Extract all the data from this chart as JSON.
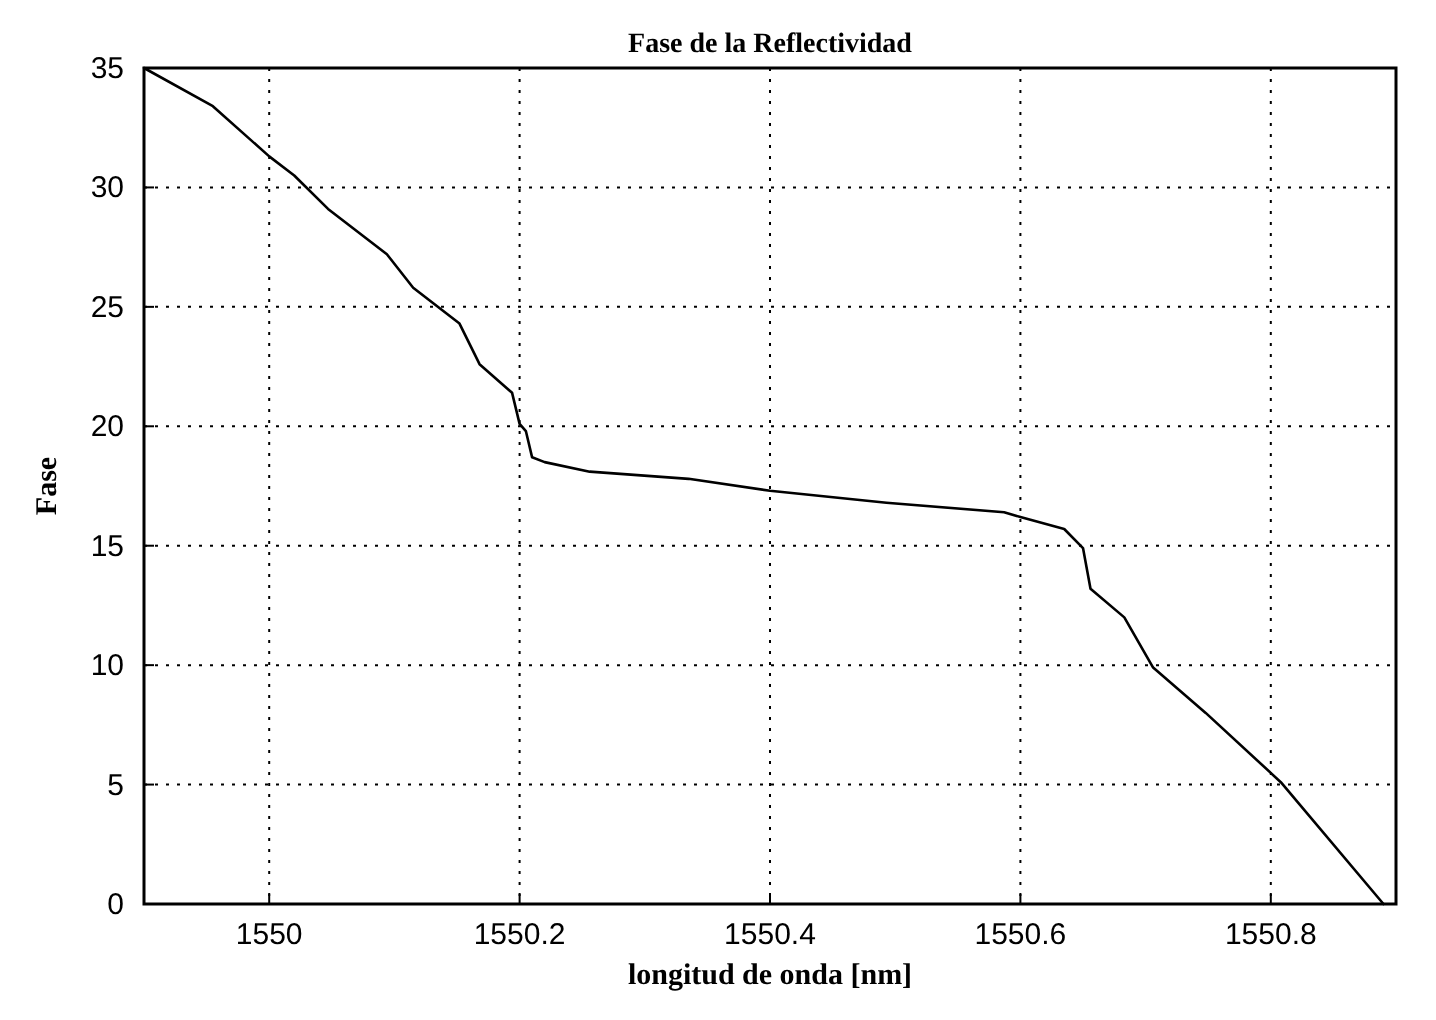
{
  "chart_data": {
    "type": "line",
    "title": "Fase de la Reflectividad",
    "xlabel": "longitud de onda [nm]",
    "ylabel": "Fase",
    "x": [
      1549.9,
      1549.955,
      1550.0,
      1550.02,
      1550.047,
      1550.094,
      1550.115,
      1550.152,
      1550.168,
      1550.194,
      1550.2,
      1550.205,
      1550.21,
      1550.22,
      1550.256,
      1550.335,
      1550.4,
      1550.493,
      1550.587,
      1550.6,
      1550.635,
      1550.65,
      1550.656,
      1550.683,
      1550.706,
      1550.748,
      1550.808,
      1550.89
    ],
    "values": [
      35,
      33.4,
      31.3,
      30.5,
      29.1,
      27.2,
      25.8,
      24.3,
      22.6,
      21.4,
      20.1,
      19.8,
      18.7,
      18.5,
      18.1,
      17.8,
      17.3,
      16.8,
      16.4,
      16.2,
      15.7,
      14.9,
      13.2,
      12.0,
      9.9,
      8.0,
      5.1,
      0
    ],
    "color": "#000000",
    "xlim": [
      1549.9,
      1550.9
    ],
    "xticks": [
      1550,
      1550.2,
      1550.4,
      1550.6,
      1550.8
    ],
    "ylim": [
      0,
      35
    ],
    "yticks": [
      0,
      5,
      10,
      15,
      20,
      25,
      30,
      35
    ],
    "grid": true,
    "line_style": "solid"
  }
}
